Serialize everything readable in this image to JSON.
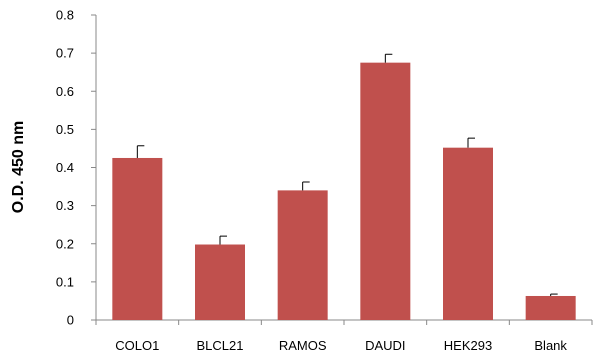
{
  "chart_data": {
    "type": "bar",
    "title": "",
    "xlabel": "",
    "ylabel": "O.D. 450 nm",
    "ylim": [
      0,
      0.8
    ],
    "y_ticks": [
      "0",
      "0.1",
      "0.2",
      "0.3",
      "0.4",
      "0.5",
      "0.6",
      "0.7",
      "0.8"
    ],
    "categories": [
      "COLO1",
      "BLCL21",
      "RAMOS",
      "DAUDI",
      "HEK293",
      "Blank"
    ],
    "values": [
      0.425,
      0.198,
      0.34,
      0.675,
      0.452,
      0.063
    ],
    "errors": [
      0.032,
      0.022,
      0.022,
      0.022,
      0.025,
      0.005
    ],
    "bar_color": "#c0504d",
    "grid": false,
    "legend": "none"
  }
}
